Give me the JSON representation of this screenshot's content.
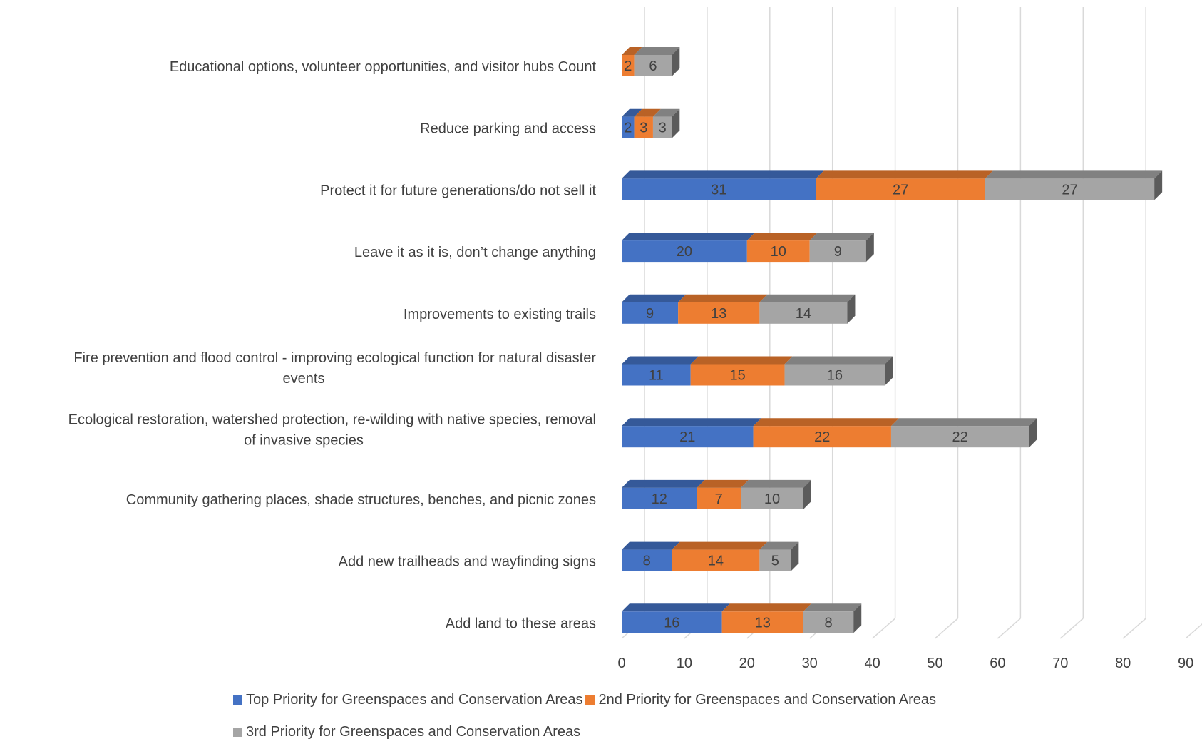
{
  "chart_data": {
    "type": "bar",
    "orientation": "horizontal",
    "stacked": true,
    "three_d": true,
    "categories": [
      "Educational options, volunteer opportunities, and visitor hubs Count",
      "Reduce parking and access",
      "Protect it for future generations/do not sell it",
      "Leave it as it is, don’t change anything",
      "Improvements to existing trails",
      "Fire prevention and flood control - improving ecological function for natural disaster events",
      "Ecological restoration, watershed protection, re-wilding with native species, removal of invasive species",
      "Community gathering places, shade structures, benches, and picnic zones",
      "Add new trailheads and wayfinding signs",
      "Add land to these areas"
    ],
    "category_label_lines": [
      [
        "Educational options, volunteer opportunities, and visitor hubs Count"
      ],
      [
        "Reduce parking and access"
      ],
      [
        "Protect it for future generations/do not sell it"
      ],
      [
        "Leave it as it is, don’t change anything"
      ],
      [
        "Improvements to existing trails"
      ],
      [
        "Fire prevention and flood control - improving ecological function for natural disaster",
        "events"
      ],
      [
        "Ecological restoration, watershed protection, re-wilding with native species, removal",
        "of invasive species"
      ],
      [
        "Community gathering places, shade structures, benches, and picnic zones"
      ],
      [
        "Add new trailheads and wayfinding signs"
      ],
      [
        "Add land to these areas"
      ]
    ],
    "series": [
      {
        "name": "Top Priority for Greenspaces and Conservation Areas",
        "color": "#4472C4",
        "values": [
          0,
          2,
          31,
          20,
          9,
          11,
          21,
          12,
          8,
          16
        ]
      },
      {
        "name": "2nd Priority for Greenspaces and Conservation Areas",
        "color": "#ED7D31",
        "values": [
          2,
          3,
          27,
          10,
          13,
          15,
          22,
          7,
          14,
          13
        ]
      },
      {
        "name": "3rd Priority for Greenspaces and Conservation Areas",
        "color": "#A5A5A5",
        "values": [
          6,
          3,
          27,
          9,
          14,
          16,
          22,
          10,
          5,
          8
        ]
      }
    ],
    "xlim": [
      0,
      90
    ],
    "xticks": [
      "0",
      "10",
      "20",
      "30",
      "40",
      "50",
      "60",
      "70",
      "80",
      "90"
    ],
    "grid": true,
    "legend_position": "bottom"
  }
}
